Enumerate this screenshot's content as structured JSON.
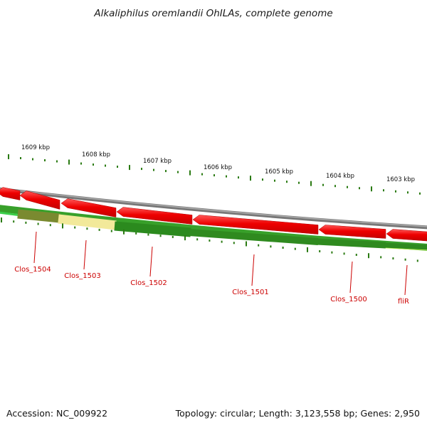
{
  "title": "Alkaliphilus oremlandii OhILAs, complete genome",
  "footer": {
    "accession": "Accession: NC_009922",
    "summary": "Topology: circular; Length: 3,123,558 bp; Genes: 2,950"
  },
  "kbp_ticks": [
    "1609 kbp",
    "1608 kbp",
    "1607 kbp",
    "1606 kbp",
    "1605 kbp",
    "1604 kbp",
    "1603 kbp"
  ],
  "gene_labels": [
    "Clos_1504",
    "Clos_1503",
    "Clos_1502",
    "Clos_1501",
    "Clos_1500",
    "fliR"
  ],
  "colors": {
    "backbone": "#8c8c8c",
    "forward_cds": "#ee0000",
    "tick": "#2a7a12",
    "gene_label": "#cc0000",
    "gc_dark": "#2f8a1f",
    "gc_light": "#b8f050",
    "olive": "#7a8a30",
    "pale_yellow": "#f2e99a"
  }
}
